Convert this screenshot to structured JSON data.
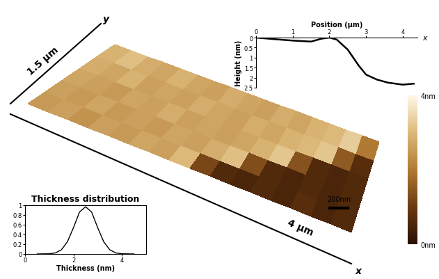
{
  "chart_data": [
    {
      "type": "heatmap",
      "y_axis_label": "1.5 µm",
      "y_axis_name": "y",
      "x_axis_label": "4 µm",
      "x_axis_name": "x",
      "scale_bar": "200nm",
      "cells": [
        [
          2.5,
          2.6,
          2.4,
          2.6,
          2.5,
          2.7,
          2.6,
          3.0,
          1.2,
          0.6,
          0.5,
          0.6,
          0.5,
          0.7,
          0.5,
          0.6
        ],
        [
          2.6,
          2.5,
          2.7,
          2.5,
          2.6,
          2.5,
          2.7,
          2.6,
          2.8,
          3.1,
          1.3,
          0.6,
          0.5,
          0.6,
          0.5,
          0.6
        ],
        [
          2.7,
          2.6,
          2.5,
          2.7,
          2.6,
          2.8,
          2.6,
          2.7,
          2.6,
          2.7,
          2.9,
          3.2,
          1.4,
          0.6,
          0.5,
          0.6
        ],
        [
          2.8,
          2.7,
          2.9,
          2.6,
          2.7,
          2.6,
          2.8,
          2.7,
          2.6,
          2.8,
          2.7,
          2.9,
          3.0,
          3.2,
          1.5,
          0.7
        ],
        [
          2.9,
          3.1,
          2.8,
          2.7,
          2.9,
          2.7,
          2.6,
          2.8,
          2.7,
          2.6,
          2.8,
          2.7,
          2.9,
          3.0,
          3.3,
          2.0
        ]
      ],
      "colorbar": {
        "range": [
          0,
          4
        ],
        "ticks": [
          {
            "value": 0,
            "label": "0nm"
          },
          {
            "value": 4,
            "label": "4nm"
          }
        ]
      }
    },
    {
      "type": "line",
      "x_label": "Position (µm)",
      "y_label": "Height (nm)",
      "x_axis_name": "x",
      "color": "#000000",
      "x": [
        0,
        0.5,
        1.0,
        1.5,
        1.8,
        2.0,
        2.2,
        2.5,
        2.8,
        3.0,
        3.3,
        3.6,
        4.0,
        4.3
      ],
      "values": [
        0,
        0.08,
        0.15,
        0.2,
        0.05,
        0.0,
        0.1,
        0.6,
        1.4,
        1.85,
        2.1,
        2.25,
        2.35,
        2.3
      ],
      "xlim": [
        0,
        4.4
      ],
      "xticks": [
        0,
        1,
        2,
        3,
        4
      ],
      "ylim": [
        2.5,
        0
      ],
      "yticks": [
        0,
        0.5,
        1,
        1.5,
        2,
        2.5
      ]
    },
    {
      "type": "line",
      "title": "Thickness distribution",
      "x_label": "Thickness (nm)",
      "color": "#000000",
      "x": [
        0.5,
        1.0,
        1.25,
        1.5,
        1.75,
        2.0,
        2.25,
        2.5,
        2.75,
        3.0,
        3.25,
        3.5,
        3.75,
        4.0,
        4.5
      ],
      "values": [
        0,
        0.004,
        0.021,
        0.085,
        0.25,
        0.54,
        0.86,
        0.97,
        0.86,
        0.54,
        0.25,
        0.085,
        0.021,
        0.004,
        0
      ],
      "xlim": [
        0,
        5
      ],
      "xticks": [
        0,
        2,
        4
      ],
      "ylim": [
        0,
        1
      ],
      "yticks": [
        0,
        0.2,
        0.4,
        0.6,
        0.8,
        1
      ]
    }
  ]
}
